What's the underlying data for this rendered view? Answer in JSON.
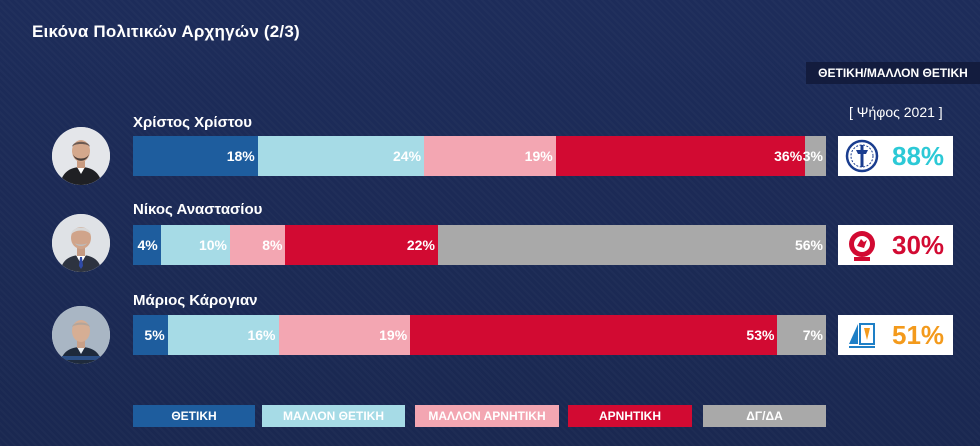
{
  "header": {
    "title": "Εικόνα Πολιτικών Αρχηγών (2/3)",
    "tag": "ΘΕΤΙΚΗ/ΜΑΛΛΟΝ ΘΕΤΙΚΗ",
    "vote_label": "[ Ψήφος 2021 ]"
  },
  "colors": {
    "positive": "#1e5d9e",
    "rather_positive": "#a6dbe6",
    "rather_negative": "#f3a6b2",
    "negative": "#d20a32",
    "dk_na": "#a9a9a9"
  },
  "chart_data": {
    "type": "bar",
    "orientation": "horizontal-stacked",
    "title": "Εικόνα Πολιτικών Αρχηγών (2/3)",
    "legend": [
      "ΘΕΤΙΚΗ",
      "ΜΑΛΛΟΝ ΘΕΤΙΚΗ",
      "ΜΑΛΛΟΝ ΑΡΝΗΤΙΚΗ",
      "ΑΡΝΗΤΙΚΗ",
      "ΔΓ/ΔΑ"
    ],
    "legend_placement": "bottom",
    "categories": [
      "Χρίστος Χρίστου",
      "Νίκος Αναστασίου",
      "Μάριος Κάρογιαν"
    ],
    "series": [
      {
        "name": "ΘΕΤΙΚΗ",
        "values": [
          18,
          4,
          5
        ]
      },
      {
        "name": "ΜΑΛΛΟΝ ΘΕΤΙΚΗ",
        "values": [
          24,
          10,
          16
        ]
      },
      {
        "name": "ΜΑΛΛΟΝ ΑΡΝΗΤΙΚΗ",
        "values": [
          19,
          8,
          19
        ]
      },
      {
        "name": "ΑΡΝΗΤΙΚΗ",
        "values": [
          36,
          22,
          53
        ]
      },
      {
        "name": "ΔΓ/ΔΑ",
        "values": [
          3,
          56,
          7
        ]
      }
    ],
    "party_vote_2021": [
      {
        "party": "ΕΛΑΜ",
        "value": "88%",
        "color": "#2cc9d6",
        "icon": "elam-logo"
      },
      {
        "party": "ΑΚΕΛ",
        "value": "30%",
        "color": "#d20a32",
        "icon": "akel-logo"
      },
      {
        "party": "Δημοκρατική Παράταξη",
        "value": "51%",
        "color": "#f39a1c",
        "icon": "diko-logo"
      }
    ]
  },
  "leaders": [
    {
      "name": "Χρίστος Χρίστου",
      "labels": [
        "18%",
        "24%",
        "19%",
        "36%",
        "3%"
      ]
    },
    {
      "name": "Νίκος Αναστασίου",
      "labels": [
        "4%",
        "10%",
        "8%",
        "22%",
        "56%"
      ]
    },
    {
      "name": "Μάριος Κάρογιαν",
      "labels": [
        "5%",
        "16%",
        "19%",
        "53%",
        "7%"
      ]
    }
  ]
}
